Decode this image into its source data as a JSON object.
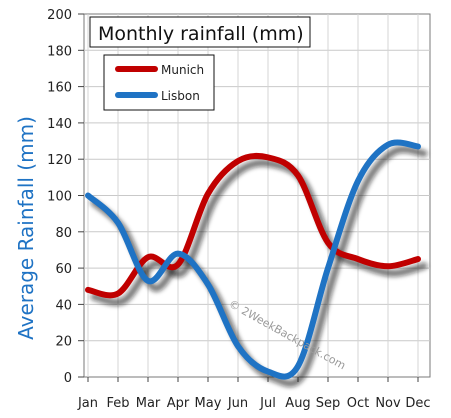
{
  "chart_data": {
    "type": "line",
    "title": "Monthly rainfall (mm)",
    "ylabel": "Average Rainfall (mm)",
    "xlabel": "",
    "categories": [
      "Jan",
      "Feb",
      "Mar",
      "Apr",
      "May",
      "Jun",
      "Jul",
      "Aug",
      "Sep",
      "Oct",
      "Nov",
      "Dec"
    ],
    "yticks": [
      "0",
      "20",
      "40",
      "60",
      "80",
      "100",
      "120",
      "140",
      "160",
      "180",
      "200"
    ],
    "ylim": [
      0,
      200
    ],
    "grid": true,
    "legend": "top-left",
    "series": [
      {
        "name": "Munich",
        "color": "#c00000",
        "values": [
          48,
          46,
          66,
          62,
          101,
          119,
          121,
          111,
          74,
          65,
          61,
          65
        ]
      },
      {
        "name": "Lisbon",
        "color": "#1f73c4",
        "values": [
          100,
          85,
          53,
          68,
          51,
          17,
          3,
          6,
          60,
          108,
          128,
          127
        ]
      }
    ],
    "ylabel_color": "#1f73c4",
    "watermark": "© 2WeekBackpack.com"
  }
}
